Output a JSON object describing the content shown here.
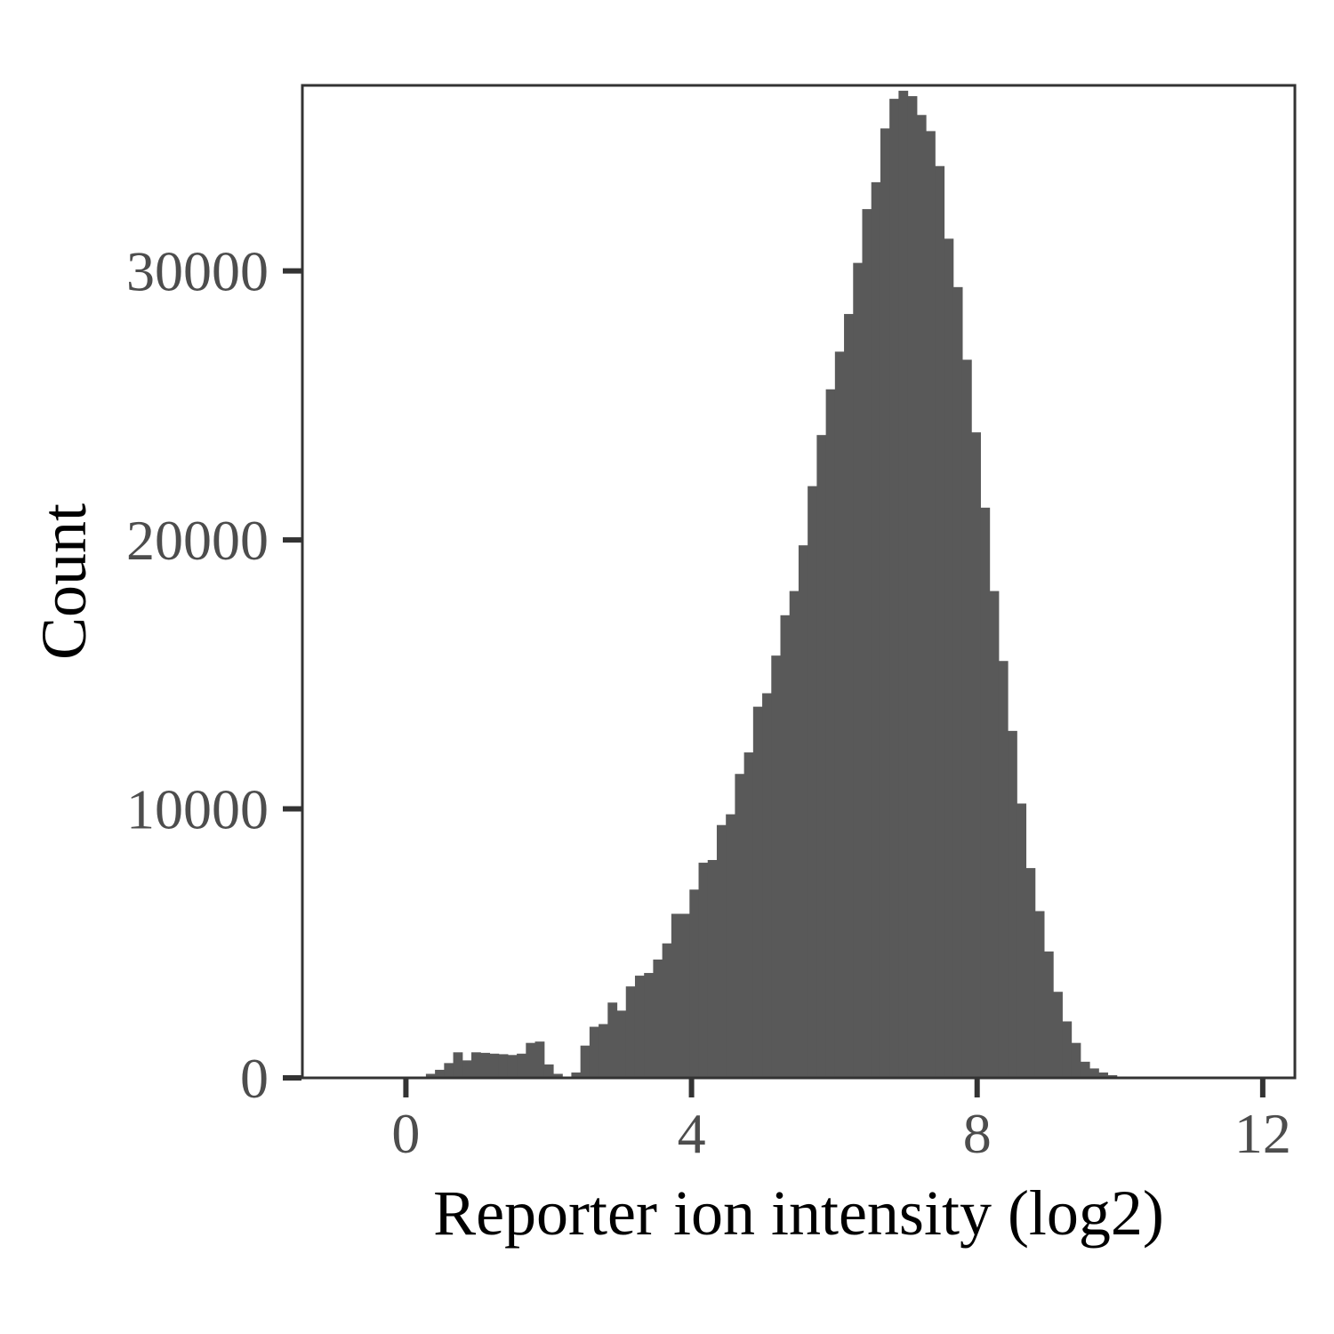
{
  "chart_data": {
    "type": "bar",
    "title": "",
    "xlabel": "Reporter ion intensity (log2)",
    "ylabel": "Count",
    "xlim": [
      -1.45,
      12.45
    ],
    "ylim": [
      0,
      36900
    ],
    "xticks": [
      0,
      4,
      8,
      12
    ],
    "yticks": [
      0,
      10000,
      20000,
      30000
    ],
    "xtick_labels": [
      "0",
      "4",
      "8",
      "12"
    ],
    "ytick_labels": [
      "0",
      "10000",
      "20000",
      "30000"
    ],
    "bin_width": 0.1273,
    "bin_start": 0.28,
    "bar_color": "#595959",
    "frame_color": "#333333",
    "grid": false,
    "legend": "none",
    "values": [
      150,
      300,
      550,
      950,
      650,
      950,
      930,
      900,
      880,
      850,
      900,
      1300,
      1350,
      500,
      150,
      30,
      200,
      1200,
      1900,
      2000,
      2800,
      2500,
      3400,
      3800,
      3900,
      4400,
      5000,
      6100,
      6100,
      7000,
      8000,
      8100,
      9400,
      9800,
      11300,
      12100,
      13800,
      14300,
      15700,
      17200,
      18100,
      19800,
      22000,
      23900,
      25600,
      27000,
      28400,
      30300,
      32300,
      33300,
      35300,
      36400,
      36700,
      36500,
      35800,
      35200,
      33900,
      31200,
      29400,
      26700,
      24000,
      21200,
      18100,
      15500,
      12900,
      10200,
      7800,
      6200,
      4700,
      3200,
      2100,
      1300,
      600,
      350,
      200,
      100,
      50,
      10,
      5
    ]
  }
}
